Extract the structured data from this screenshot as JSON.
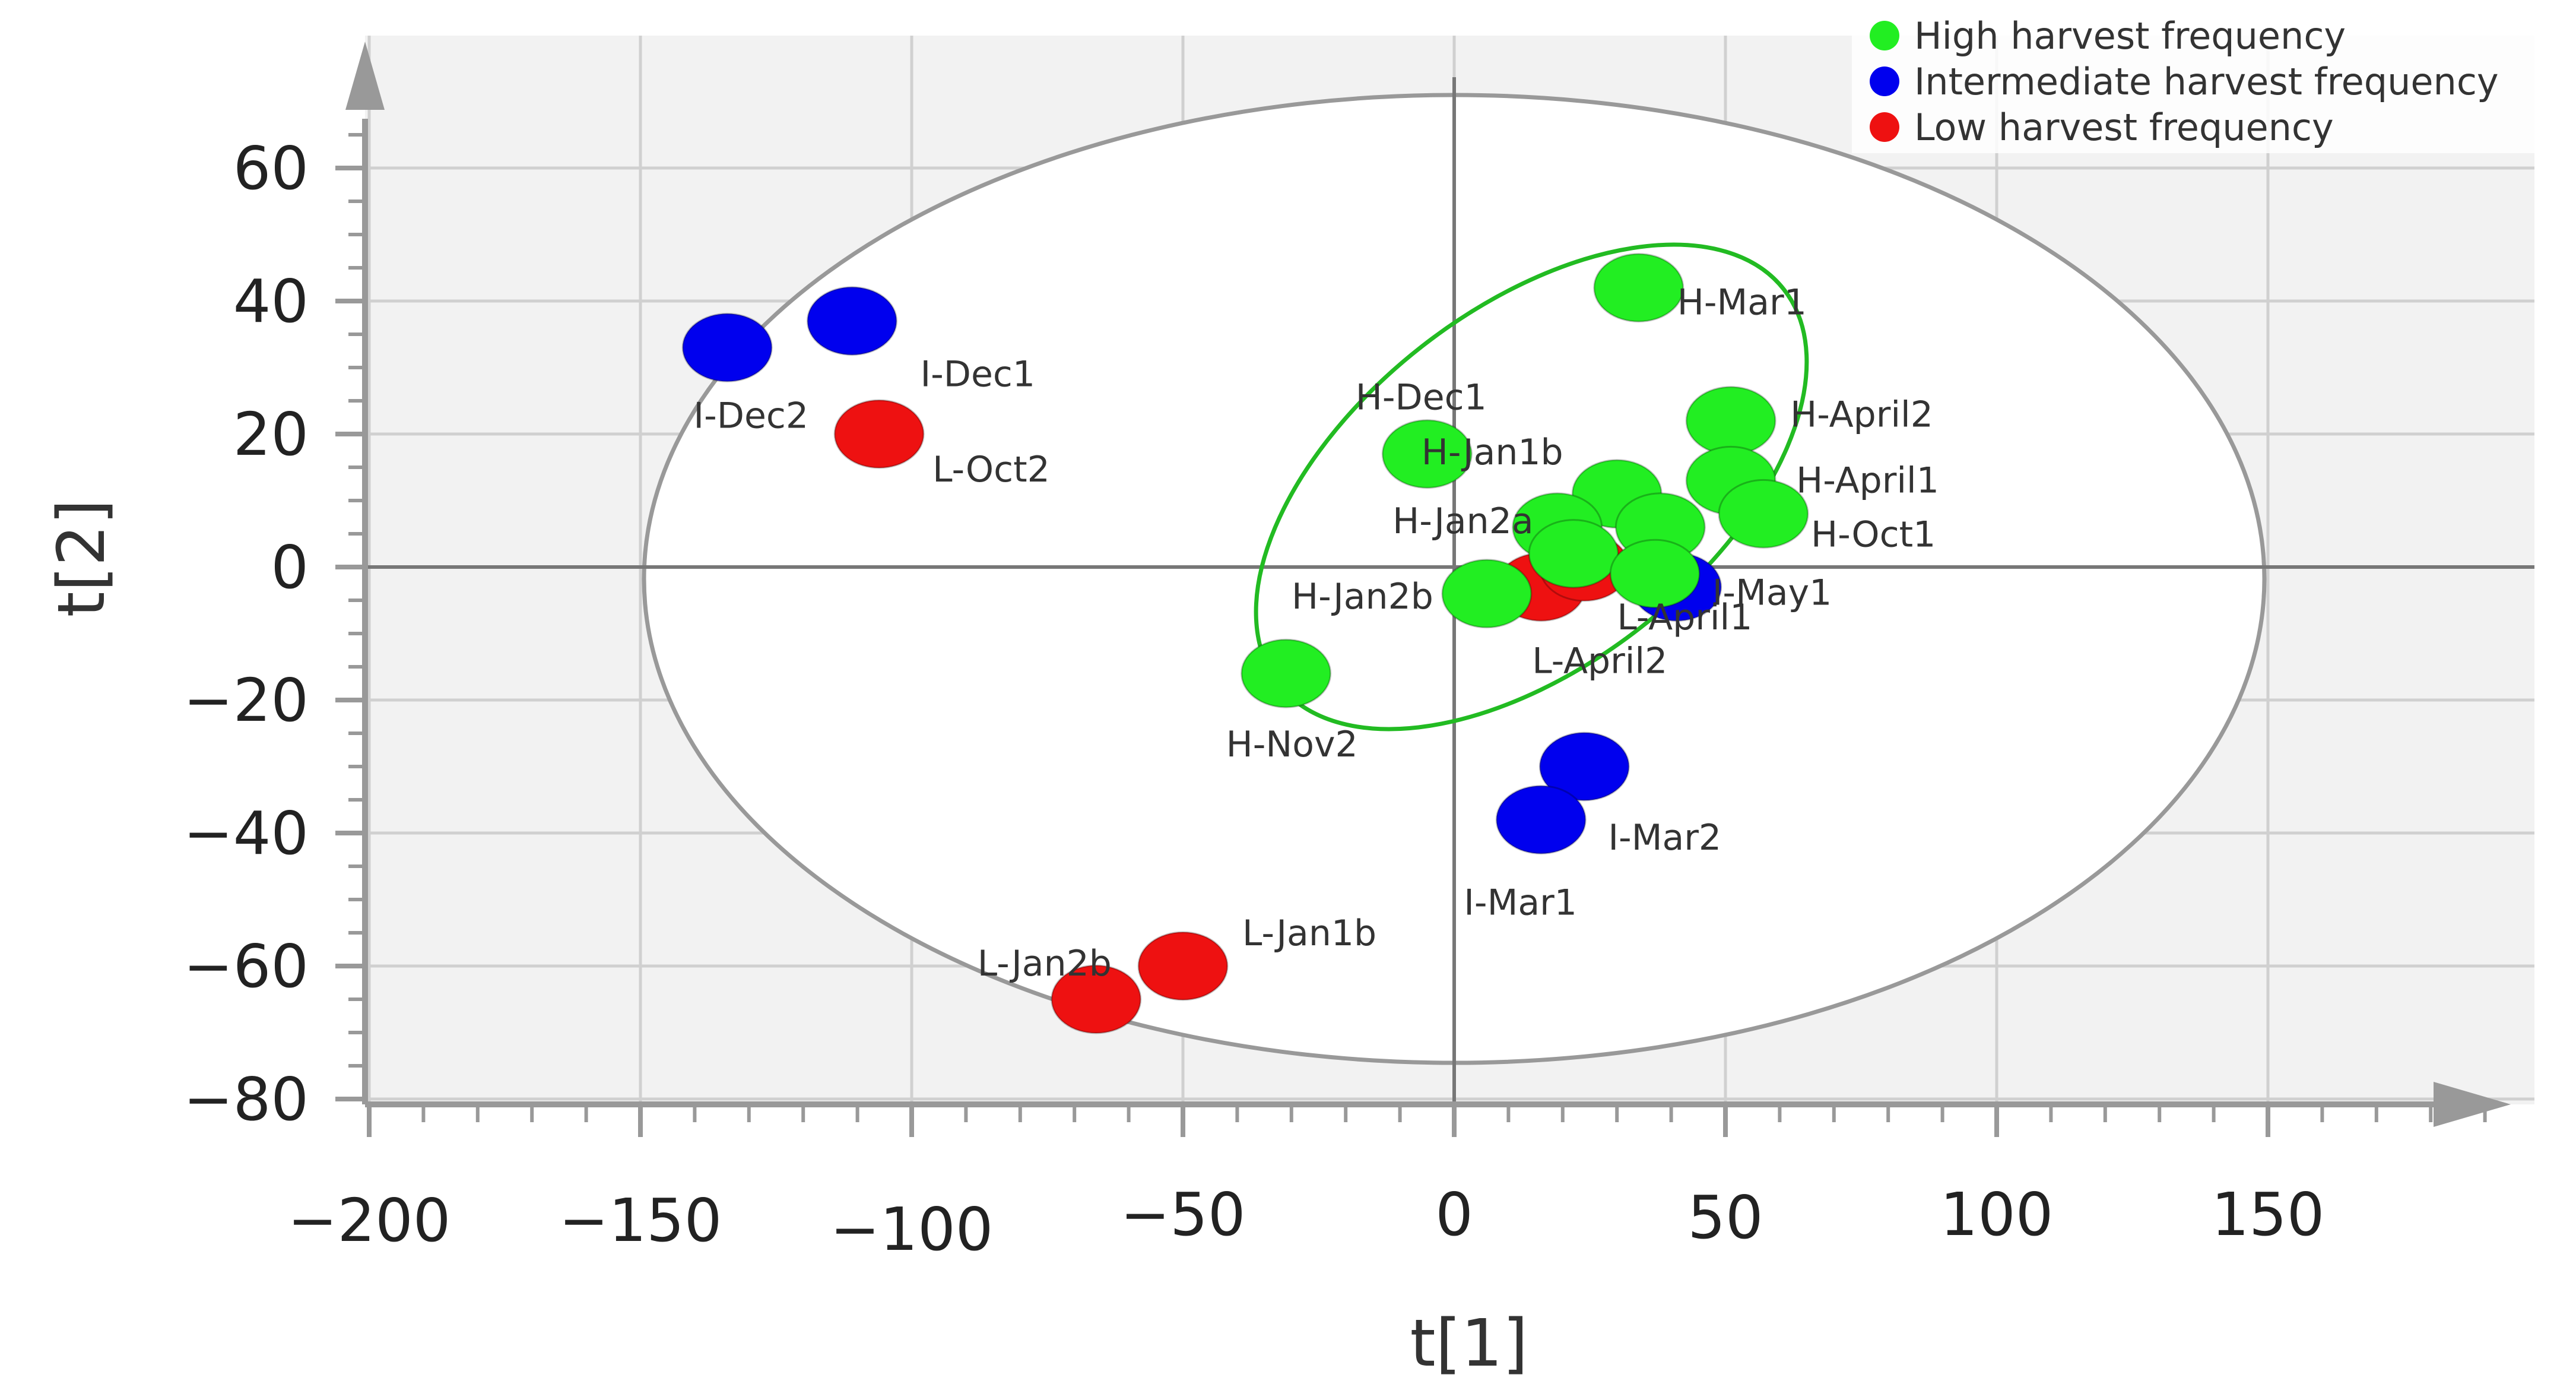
{
  "chart_data": {
    "type": "scatter",
    "xlabel": "t[1]",
    "ylabel": "t[2]",
    "xlim": [
      -200,
      200
    ],
    "ylim": [
      -80,
      75
    ],
    "x_ticks": [
      {
        "value": -200,
        "label": "−200"
      },
      {
        "value": -150,
        "label": "−150"
      },
      {
        "value": -100,
        "label": "−100"
      },
      {
        "value": -50,
        "label": "−50"
      },
      {
        "value": 0,
        "label": "0"
      },
      {
        "value": 50,
        "label": "50"
      },
      {
        "value": 100,
        "label": "100"
      },
      {
        "value": 150,
        "label": "150"
      }
    ],
    "y_ticks": [
      {
        "value": 60,
        "label": "60"
      },
      {
        "value": 40,
        "label": "40"
      },
      {
        "value": 20,
        "label": "20"
      },
      {
        "value": 0,
        "label": "0"
      },
      {
        "value": -20,
        "label": "−20"
      },
      {
        "value": -40,
        "label": "−40"
      },
      {
        "value": -60,
        "label": "−60"
      },
      {
        "value": -80,
        "label": "−80"
      }
    ],
    "grid": true,
    "legend_position": "top-right",
    "series": [
      {
        "name": "High harvest frequency",
        "color": "#22ee22",
        "points": [
          {
            "x": 34,
            "y": 42,
            "label": "H-Mar1"
          },
          {
            "x": -5,
            "y": 17,
            "label": "H-Dec1"
          },
          {
            "x": 51,
            "y": 22,
            "label": "H-April2"
          },
          {
            "x": 51,
            "y": 13,
            "label": "H-April1"
          },
          {
            "x": 57,
            "y": 8,
            "label": "H-Oct1"
          },
          {
            "x": 30,
            "y": 11,
            "label": "H-Jan1b"
          },
          {
            "x": 38,
            "y": 6,
            "label": ""
          },
          {
            "x": 19,
            "y": 6,
            "label": "H-Jan2a"
          },
          {
            "x": 22,
            "y": 2,
            "label": ""
          },
          {
            "x": 37,
            "y": -1,
            "label": ""
          },
          {
            "x": 6,
            "y": -4,
            "label": "H-Jan2b"
          },
          {
            "x": -31,
            "y": -16,
            "label": "H-Nov2"
          }
        ]
      },
      {
        "name": "Intermediate  harvest frequency",
        "color": "#0000ee",
        "points": [
          {
            "x": -134,
            "y": 33,
            "label": "I-Dec2"
          },
          {
            "x": -111,
            "y": 37,
            "label": "I-Dec1"
          },
          {
            "x": 41,
            "y": -3,
            "label": "I-May1"
          },
          {
            "x": 24,
            "y": -30,
            "label": "I-Mar2"
          },
          {
            "x": 16,
            "y": -38,
            "label": "I-Mar1"
          }
        ]
      },
      {
        "name": "Low harvest frequency",
        "color": "#ee1111",
        "points": [
          {
            "x": -106,
            "y": 20,
            "label": "L-Oct2"
          },
          {
            "x": 16,
            "y": -3,
            "label": "L-April2"
          },
          {
            "x": 24,
            "y": 0,
            "label": "L-April1"
          },
          {
            "x": -50,
            "y": -60,
            "label": "L-Jan1b"
          },
          {
            "x": -66,
            "y": -65,
            "label": "L-Jan2b"
          }
        ]
      }
    ]
  }
}
